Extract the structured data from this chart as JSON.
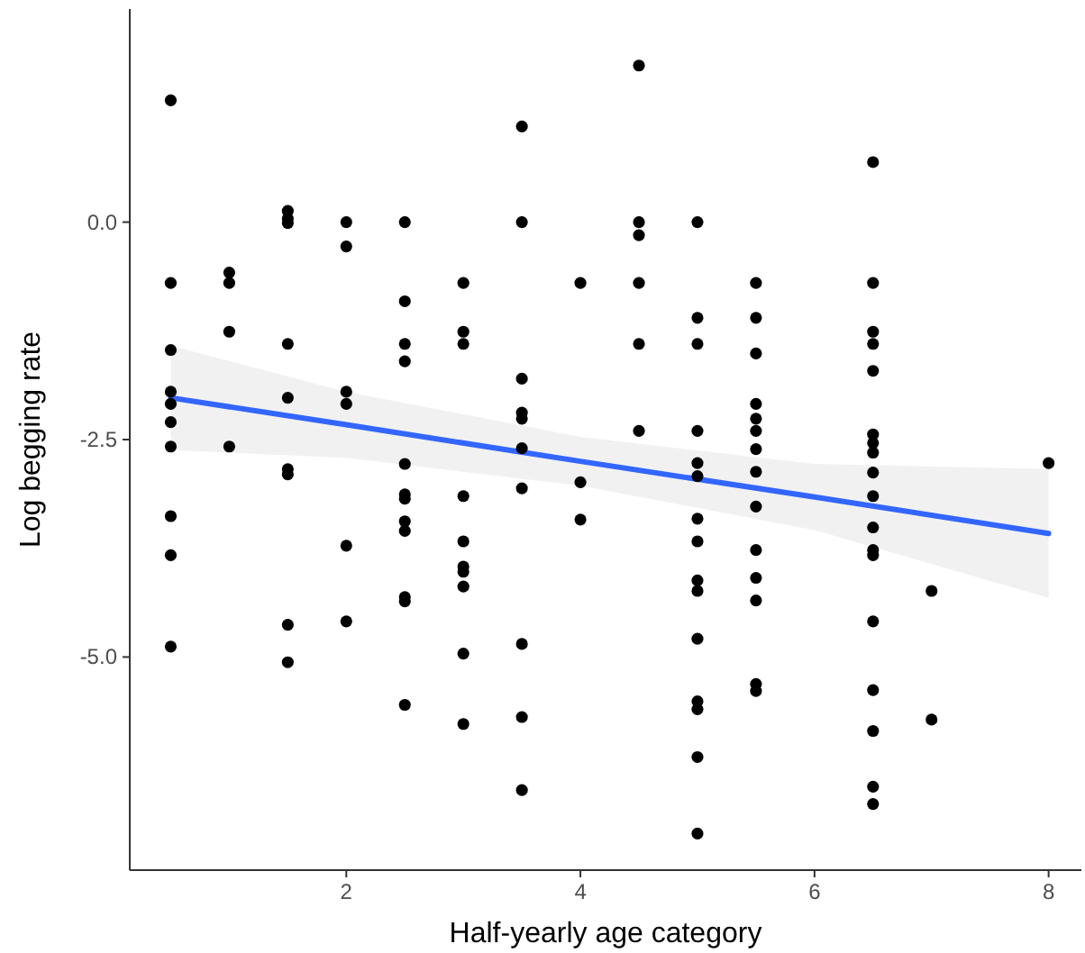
{
  "chart_data": {
    "type": "scatter",
    "xlabel": "Half-yearly age category",
    "ylabel": "Log begging rate",
    "xlim": [
      0.15,
      8.28
    ],
    "ylim": [
      -7.45,
      2.45
    ],
    "xticks": [
      2,
      4,
      6,
      8
    ],
    "yticks": [
      {
        "value": 0,
        "label": "0.0"
      },
      {
        "value": -2.5,
        "label": "-2.5"
      },
      {
        "value": -5,
        "label": "-5.0"
      }
    ],
    "grid": false,
    "series": [
      {
        "color": "#000000",
        "marker": "circle",
        "x": [
          0.5,
          0.5,
          0.5,
          0.5,
          0.5,
          0.5,
          0.5,
          0.5,
          0.5,
          0.5,
          1,
          1,
          1,
          1,
          1.5,
          1.5,
          1.5,
          1.5,
          1.5,
          1.5,
          1.5,
          1.5,
          1.5,
          2,
          2,
          2,
          2,
          2,
          2,
          2.5,
          2.5,
          2.5,
          2.5,
          2.5,
          2.5,
          2.5,
          2.5,
          2.5,
          2.5,
          2.5,
          2.5,
          3,
          3,
          3,
          3,
          3,
          3,
          3,
          3,
          3,
          3,
          3.5,
          3.5,
          3.5,
          3.5,
          3.5,
          3.5,
          3.5,
          3.5,
          3.5,
          3.5,
          4,
          4,
          4,
          4.5,
          4.5,
          4.5,
          4.5,
          4.5,
          4.5,
          5,
          5,
          5,
          5,
          5,
          5,
          5,
          5,
          5,
          5,
          5,
          5,
          5,
          5,
          5,
          5.5,
          5.5,
          5.5,
          5.5,
          5.5,
          5.5,
          5.5,
          5.5,
          5.5,
          5.5,
          5.5,
          5.5,
          5.5,
          5.5,
          6.5,
          6.5,
          6.5,
          6.5,
          6.5,
          6.5,
          6.5,
          6.5,
          6.5,
          6.5,
          6.5,
          6.5,
          6.5,
          6.5,
          6.5,
          6.5,
          6.5,
          6.5,
          7,
          7,
          8
        ],
        "values": [
          1.4,
          -0.7,
          -1.47,
          -1.95,
          -2.09,
          -2.3,
          -2.58,
          -3.38,
          -3.83,
          -4.88,
          -0.58,
          -0.7,
          -1.26,
          -2.58,
          0.13,
          0.04,
          -0.01,
          -1.4,
          -2.02,
          -2.84,
          -2.9,
          -4.63,
          -5.06,
          0,
          -0.28,
          -1.95,
          -2.09,
          -3.72,
          -4.59,
          0,
          -0.91,
          -1.4,
          -1.6,
          -2.78,
          -3.13,
          -3.18,
          -3.44,
          -3.55,
          -4.31,
          -4.36,
          -5.55,
          -0.7,
          -1.26,
          -1.4,
          -3.15,
          -3.67,
          -3.96,
          -4.02,
          -4.19,
          -4.96,
          -5.77,
          1.1,
          0,
          -1.8,
          -2.19,
          -2.26,
          -2.6,
          -3.06,
          -4.85,
          -5.69,
          -6.53,
          -0.7,
          -2.99,
          -3.42,
          1.8,
          0,
          -0.15,
          -0.7,
          -1.4,
          -2.4,
          0,
          -1.1,
          -1.4,
          -2.4,
          -2.77,
          -2.92,
          -3.41,
          -3.67,
          -4.12,
          -4.24,
          -4.79,
          -5.51,
          -5.6,
          -6.15,
          -7.03,
          -0.7,
          -1.1,
          -1.51,
          -2.09,
          -2.26,
          -2.4,
          -2.61,
          -2.87,
          -3.27,
          -3.77,
          -4.09,
          -4.35,
          -5.31,
          -5.39,
          0.69,
          -0.7,
          -1.26,
          -1.4,
          -1.71,
          -2.44,
          -2.54,
          -2.65,
          -2.88,
          -3.15,
          -3.51,
          -3.77,
          -3.83,
          -4.59,
          -5.38,
          -5.85,
          -6.49,
          -6.69,
          -4.24,
          -5.72,
          -2.77
        ]
      },
      {
        "type": "line",
        "color": "#3366ff",
        "x": [
          0.5,
          2,
          4,
          6,
          8
        ],
        "values": [
          -2.02,
          -2.33,
          -2.75,
          -3.16,
          -3.58
        ],
        "lower": [
          -2.62,
          -2.71,
          -3.03,
          -3.54,
          -4.32
        ],
        "upper": [
          -1.42,
          -1.95,
          -2.47,
          -2.78,
          -2.84
        ]
      }
    ]
  }
}
